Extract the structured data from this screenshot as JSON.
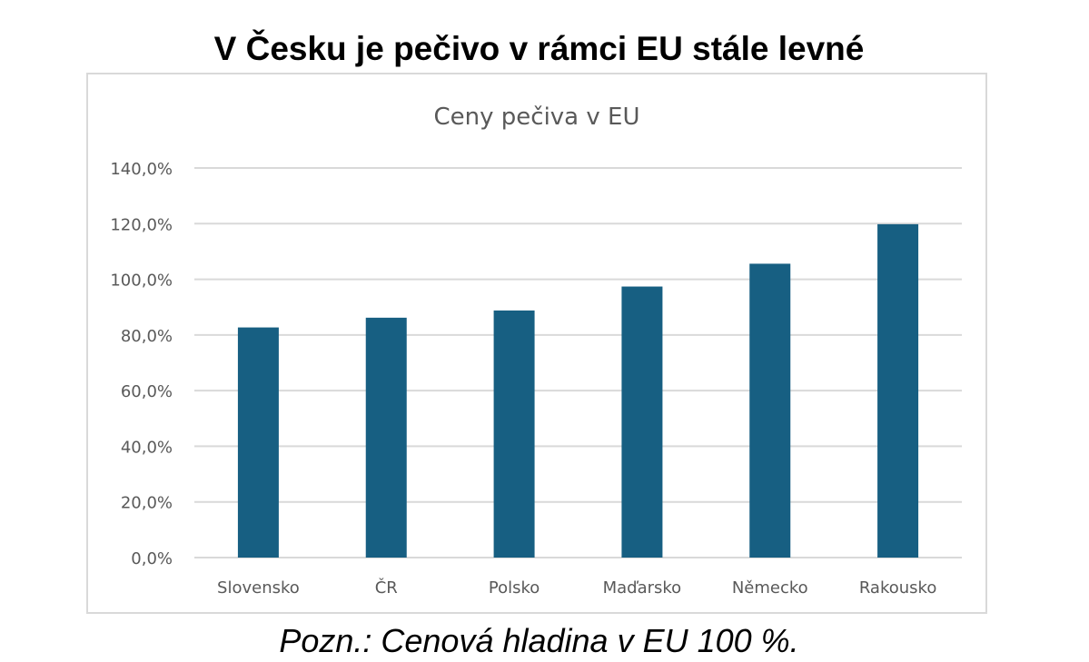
{
  "page": {
    "title": "V Česku je pečivo v rámci EU stále levné",
    "note": "Pozn.: Cenová hladina v EU 100 %."
  },
  "colors": {
    "bar": "#175f82",
    "grid": "#d9d9d9",
    "axis_text": "#595959",
    "chart_title": "#595959"
  },
  "chart_data": {
    "type": "bar",
    "title": "Ceny pečiva v EU",
    "xlabel": "",
    "ylabel": "",
    "categories": [
      "Slovensko",
      "ČR",
      "Polsko",
      "Maďarsko",
      "Německo",
      "Rakousko"
    ],
    "values": [
      82.7,
      86.2,
      88.8,
      97.4,
      105.6,
      119.8
    ],
    "ylim": [
      0,
      140
    ],
    "yticks": [
      0,
      20,
      40,
      60,
      80,
      100,
      120,
      140
    ],
    "ytick_labels": [
      "0,0%",
      "20,0%",
      "40,0%",
      "60,0%",
      "80,0%",
      "100,0%",
      "120,0%",
      "140,0%"
    ],
    "grid": true,
    "legend": "none"
  }
}
